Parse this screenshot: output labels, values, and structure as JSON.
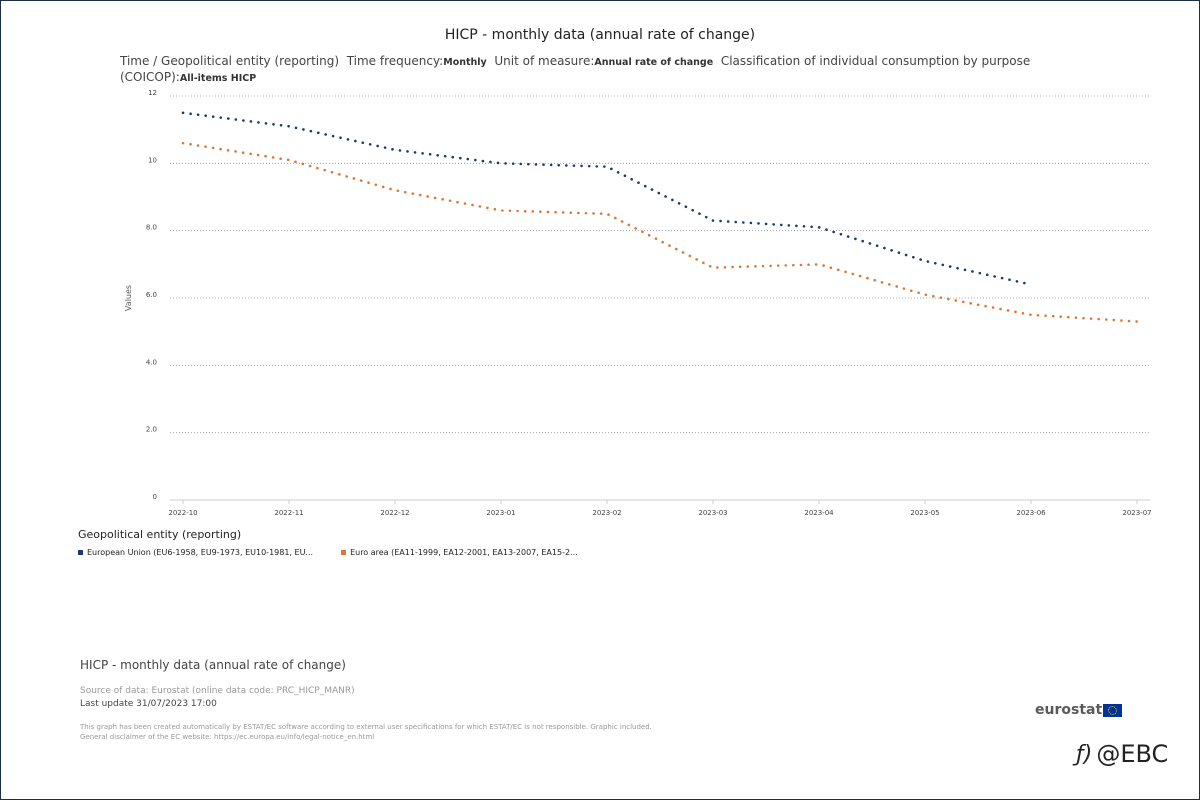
{
  "header": {
    "title": "HICP - monthly data (annual rate of change)",
    "dims": [
      {
        "label": "Time / Geopolitical entity (reporting)",
        "value": ""
      },
      {
        "label": "Time frequency:",
        "value": "Monthly"
      },
      {
        "label": "Unit of measure:",
        "value": "Annual rate of change"
      },
      {
        "label": "Classification of individual consumption by purpose (COICOP):",
        "value": "All-items HICP"
      }
    ]
  },
  "chart_data": {
    "type": "line",
    "title": "",
    "xlabel": "",
    "ylabel": "Values",
    "x": [
      "2022-10",
      "2022-11",
      "2022-12",
      "2023-01",
      "2023-02",
      "2023-03",
      "2023-04",
      "2023-05",
      "2023-06",
      "2023-07"
    ],
    "y_ticks": [
      "0",
      "2.0",
      "4.0",
      "6.0",
      "8.0",
      "10",
      "12"
    ],
    "ylim": [
      0,
      12
    ],
    "grid": true,
    "line_style": "dotted",
    "legend_title": "Geopolitical entity (reporting)",
    "legend_position": "bottom-left",
    "series": [
      {
        "name": "European Union (EU6-1958, EU9-1973, EU10-1981, EU...",
        "color": "#1b3a6b",
        "values": [
          11.5,
          11.1,
          10.4,
          10.0,
          9.9,
          8.3,
          8.1,
          7.1,
          6.4,
          null
        ]
      },
      {
        "name": "Euro area (EA11-1999, EA12-2001, EA13-2007, EA15-2...",
        "color": "#d97736",
        "values": [
          10.6,
          10.1,
          9.2,
          8.6,
          8.5,
          6.9,
          7.0,
          6.1,
          5.5,
          5.3
        ]
      }
    ]
  },
  "footer": {
    "title": "HICP - monthly data (annual rate of change)",
    "source": "Source of data: Eurostat (online data code: PRC_HICP_MANR)",
    "last_update": "Last update 31/07/2023 17:00",
    "note1": "This graph has been created automatically by ESTAT/EC software according to external user specifications for which ESTAT/EC is not responsible. Graphic included.",
    "note2": "General disclaimer of the EC website: https://ec.europa.eu/info/legal-notice_en.html",
    "brand": "eurostat"
  },
  "watermark": {
    "logo": "ƒ)",
    "text": "@EBC"
  }
}
